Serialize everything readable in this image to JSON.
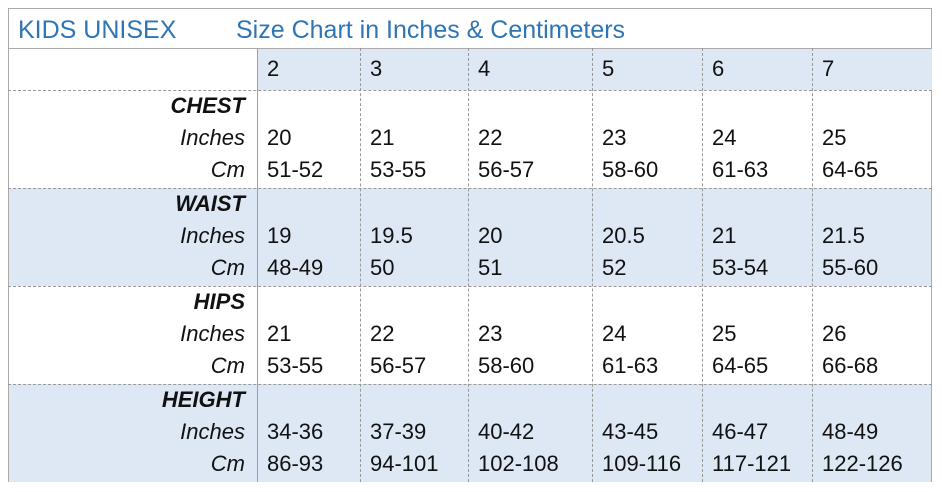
{
  "header": {
    "title": "KIDS UNISEX",
    "subtitle": "Size Chart in Inches & Centimeters"
  },
  "table": {
    "sizes": [
      "2",
      "3",
      "4",
      "5",
      "6",
      "7"
    ],
    "sections": [
      {
        "name": "CHEST",
        "rows": [
          {
            "label": "Inches",
            "values": [
              "20",
              "21",
              "22",
              "23",
              "24",
              "25"
            ]
          },
          {
            "label": "Cm",
            "values": [
              "51-52",
              "53-55",
              "56-57",
              "58-60",
              "61-63",
              "64-65"
            ]
          }
        ]
      },
      {
        "name": "WAIST",
        "rows": [
          {
            "label": "Inches",
            "values": [
              "19",
              "19.5",
              "20",
              "20.5",
              "21",
              "21.5"
            ]
          },
          {
            "label": "Cm",
            "values": [
              "48-49",
              "50",
              "51",
              "52",
              "53-54",
              "55-60"
            ]
          }
        ]
      },
      {
        "name": "HIPS",
        "rows": [
          {
            "label": "Inches",
            "values": [
              "21",
              "22",
              "23",
              "24",
              "25",
              "26"
            ]
          },
          {
            "label": "Cm",
            "values": [
              "53-55",
              "56-57",
              "58-60",
              "61-63",
              "64-65",
              "66-68"
            ]
          }
        ]
      },
      {
        "name": "HEIGHT",
        "rows": [
          {
            "label": "Inches",
            "values": [
              "34-36",
              "37-39",
              "40-42",
              "43-45",
              "46-47",
              "48-49"
            ]
          },
          {
            "label": "Cm",
            "values": [
              "86-93",
              "94-101",
              "102-108",
              "109-116",
              "117-121",
              "122-126"
            ]
          }
        ]
      }
    ]
  }
}
